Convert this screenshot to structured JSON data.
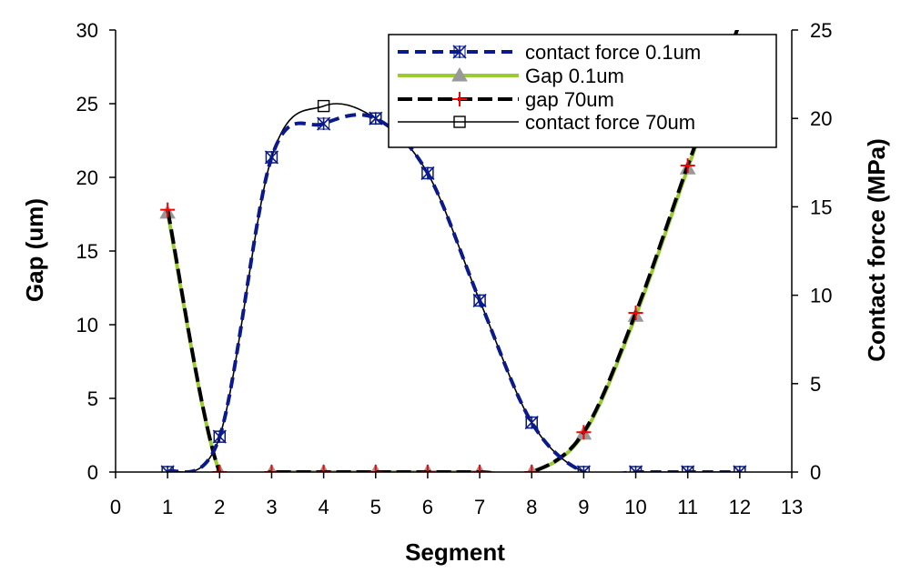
{
  "chart_data": {
    "type": "line",
    "title": "",
    "xlabel": "Segment",
    "ylabel": "Gap (um)",
    "y2label": "Contact force (MPa)",
    "xlim": [
      0,
      13
    ],
    "ylim": [
      0,
      30
    ],
    "y2lim": [
      0,
      25
    ],
    "x_ticks": [
      0,
      1,
      2,
      3,
      4,
      5,
      6,
      7,
      8,
      9,
      10,
      11,
      12,
      13
    ],
    "y_ticks": [
      0,
      5,
      10,
      15,
      20,
      25,
      30
    ],
    "y2_ticks": [
      0,
      5,
      10,
      15,
      20,
      25
    ],
    "grid": false,
    "legend_position": "top-right",
    "x": [
      1,
      2,
      3,
      4,
      5,
      6,
      7,
      8,
      9,
      10,
      11,
      12
    ],
    "series": [
      {
        "name": "contact force 0.1um",
        "axis": "right",
        "marker": "asterisk",
        "line_style": "dashed",
        "color": "#0a1a8c",
        "values": [
          0,
          2,
          17.8,
          19.7,
          20,
          16.9,
          9.7,
          2.8,
          0,
          0,
          0,
          0
        ]
      },
      {
        "name": "Gap 0.1um",
        "axis": "left",
        "marker": "triangle",
        "line_style": "solid",
        "color": "#99cc33",
        "values": [
          17.6,
          0,
          0,
          0,
          0,
          0,
          0,
          0,
          2.6,
          10.6,
          20.6,
          30.5
        ]
      },
      {
        "name": "gap 70um",
        "axis": "left",
        "marker": "plus",
        "line_style": "dashed",
        "color": "#000000",
        "marker_color": "#ff0000",
        "values": [
          17.8,
          0,
          0,
          0,
          0,
          0,
          0,
          0,
          2.7,
          10.8,
          20.8,
          30.5
        ]
      },
      {
        "name": "contact force 70um",
        "axis": "right",
        "marker": "square",
        "line_style": "solid",
        "color": "#000000",
        "values": [
          0,
          2,
          17.8,
          20.7,
          20,
          16.9,
          9.7,
          2.8,
          0,
          0,
          0,
          0
        ]
      }
    ]
  }
}
